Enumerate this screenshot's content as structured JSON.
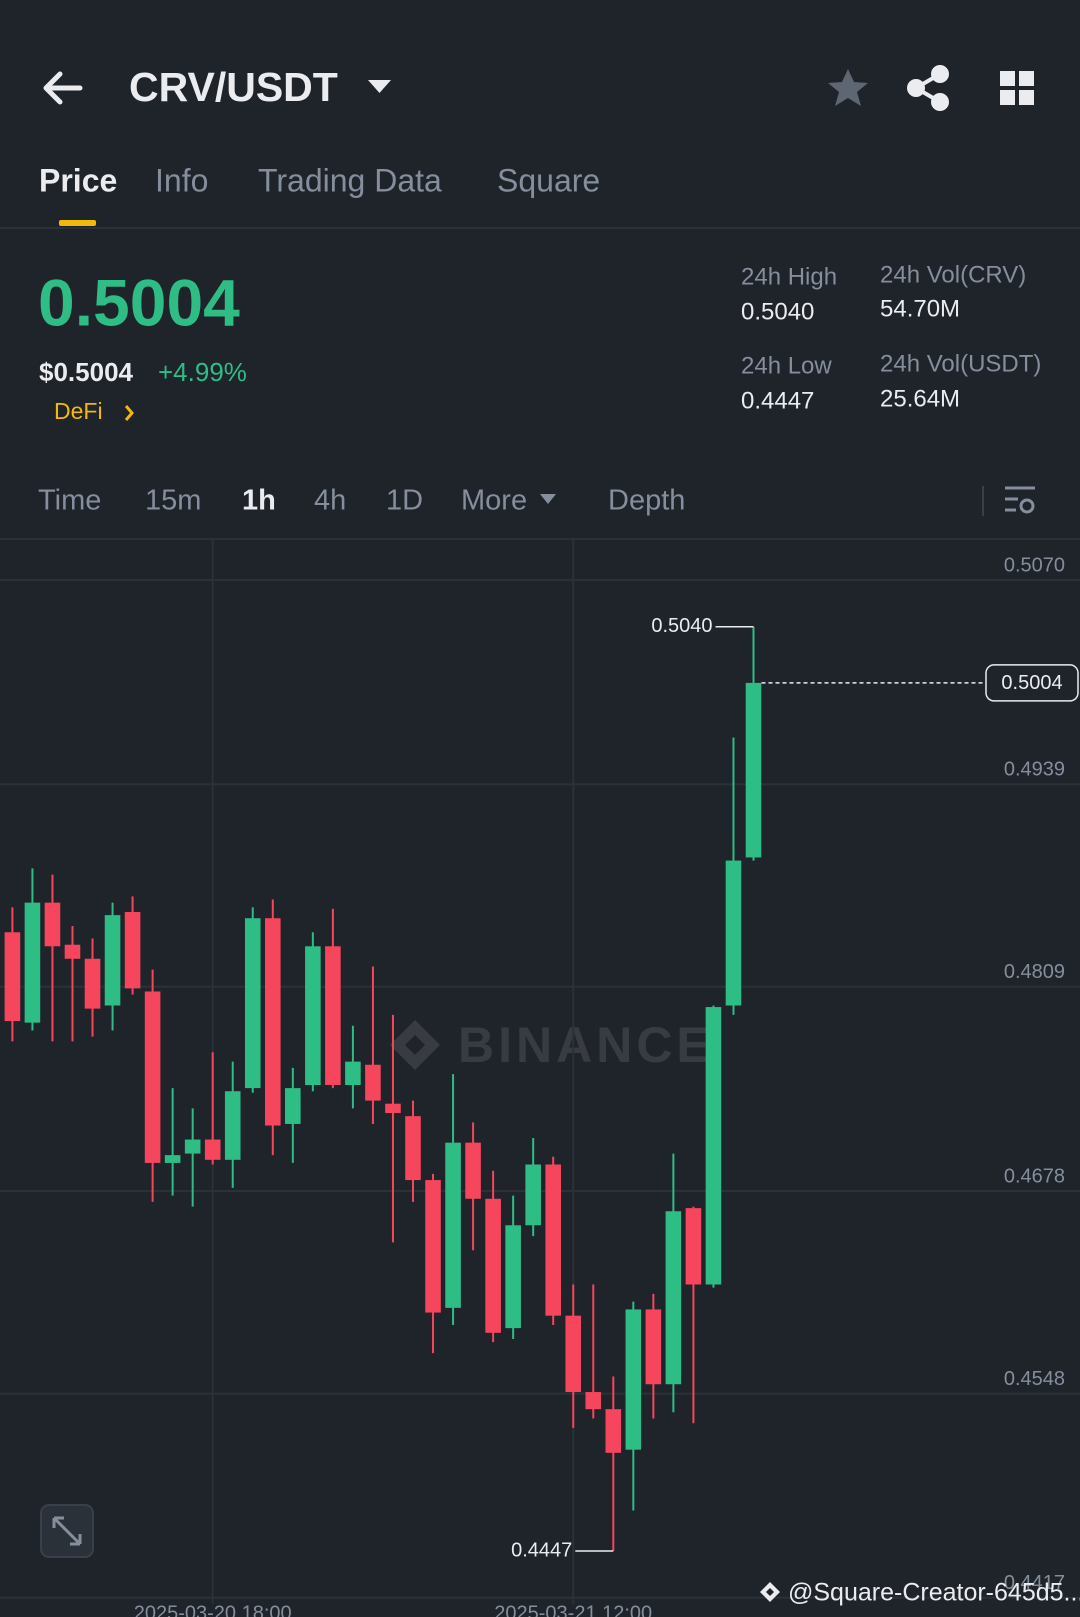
{
  "header": {
    "title": "CRV/USDT"
  },
  "tabs": [
    "Price",
    "Info",
    "Trading Data",
    "Square"
  ],
  "price": {
    "last": "0.5004",
    "usd": "$0.5004",
    "change": "+4.99%",
    "tag": "DeFi"
  },
  "stats": [
    {
      "label": "24h High",
      "value": "0.5040"
    },
    {
      "label": "24h Vol(CRV)",
      "value": "54.70M"
    },
    {
      "label": "24h Low",
      "value": "0.4447"
    },
    {
      "label": "24h Vol(USDT)",
      "value": "25.64M"
    }
  ],
  "intervals": [
    "Time",
    "15m",
    "1h",
    "4h",
    "1D",
    "More",
    "Depth"
  ],
  "watermark": "BINANCE",
  "credit": "@Square-Creator-645d5...",
  "chart_data": {
    "type": "candlestick",
    "categories": [
      null,
      null,
      null,
      null,
      null,
      null,
      null,
      null,
      null,
      null,
      "2025-03-20 18:00",
      null,
      null,
      null,
      null,
      null,
      null,
      null,
      null,
      null,
      null,
      null,
      null,
      null,
      null,
      null,
      null,
      null,
      "2025-03-21 12:00",
      null,
      null,
      null,
      null,
      null,
      null,
      null,
      null,
      null
    ],
    "open": [
      0.4844,
      0.4786,
      0.4863,
      0.4836,
      0.4827,
      0.4797,
      0.4857,
      0.4806,
      0.4696,
      0.4702,
      0.4711,
      0.4698,
      0.4744,
      0.4853,
      0.4721,
      0.4746,
      0.4835,
      0.4746,
      0.4759,
      0.4734,
      0.4726,
      0.4685,
      0.4603,
      0.4709,
      0.4673,
      0.459,
      0.4656,
      0.4695,
      0.4598,
      0.4549,
      0.4538,
      0.4512,
      0.4602,
      0.4554,
      0.4667,
      0.4618,
      0.4797,
      0.4892
    ],
    "high": [
      0.486,
      0.4885,
      0.4881,
      0.4848,
      0.484,
      0.4863,
      0.4867,
      0.482,
      0.4744,
      0.4731,
      0.4767,
      0.4761,
      0.486,
      0.4865,
      0.4757,
      0.4844,
      0.4859,
      0.4784,
      0.4822,
      0.4791,
      0.4736,
      0.4689,
      0.4753,
      0.4722,
      0.4691,
      0.4675,
      0.4712,
      0.47,
      0.4618,
      0.4618,
      0.4559,
      0.4607,
      0.4612,
      0.4702,
      0.4668,
      0.4797,
      0.4969,
      0.504
    ],
    "low": [
      0.4774,
      0.4781,
      0.4774,
      0.4774,
      0.4777,
      0.4781,
      0.4804,
      0.4671,
      0.4675,
      0.4668,
      0.4695,
      0.468,
      0.4741,
      0.4701,
      0.4696,
      0.4742,
      0.4744,
      0.4731,
      0.4721,
      0.4645,
      0.4671,
      0.4574,
      0.4592,
      0.464,
      0.4581,
      0.4583,
      0.4649,
      0.4592,
      0.4526,
      0.4532,
      0.4447,
      0.4473,
      0.4532,
      0.4536,
      0.4529,
      0.4616,
      0.4791,
      0.489
    ],
    "close": [
      0.4787,
      0.4863,
      0.4835,
      0.4827,
      0.4795,
      0.4855,
      0.4808,
      0.4696,
      0.4701,
      0.4711,
      0.4698,
      0.4742,
      0.4853,
      0.472,
      0.4744,
      0.4835,
      0.4746,
      0.4761,
      0.4736,
      0.4728,
      0.4685,
      0.46,
      0.4709,
      0.4673,
      0.4587,
      0.4656,
      0.4695,
      0.4598,
      0.4549,
      0.4538,
      0.451,
      0.4602,
      0.4554,
      0.4665,
      0.4618,
      0.4796,
      0.489,
      0.5004
    ],
    "up_color": "#2ebd85",
    "down_color": "#f6465d",
    "ylim": [
      0.4413,
      0.5096
    ],
    "yticks": [
      {
        "value": 0.507,
        "label": "0.5070"
      },
      0.4939,
      0.4809,
      0.4678,
      0.4548,
      0.4417
    ],
    "grid": true,
    "annotations": [
      {
        "label": "0.5040",
        "value": 0.504
      },
      {
        "label": "0.4447",
        "value": 0.4447
      }
    ],
    "last_price": {
      "label": "0.5004",
      "value": 0.5004
    }
  }
}
